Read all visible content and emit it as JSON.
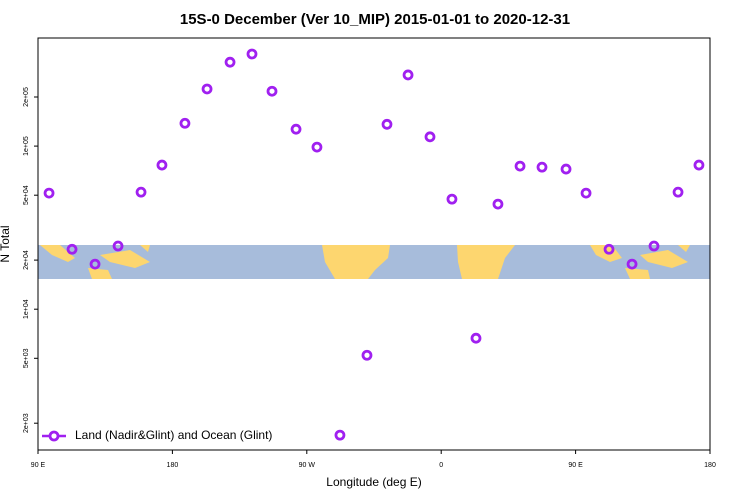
{
  "chart_data": {
    "type": "scatter",
    "title": "15S-0 December (Ver 10_MIP)   2015-01-01 to 2020-12-31",
    "x_label": "Longitude (deg E)",
    "y_label": "N Total",
    "xlim": [
      90,
      540
    ],
    "xticks": [
      {
        "value": 90,
        "label": "90 E"
      },
      {
        "value": 180,
        "label": "180"
      },
      {
        "value": 270,
        "label": "90 W"
      },
      {
        "value": 360,
        "label": "0"
      },
      {
        "value": 450,
        "label": "90 E"
      },
      {
        "value": 540,
        "label": "180"
      }
    ],
    "ylim": [
      1370,
      460000
    ],
    "yscale": "log",
    "yticks": [
      {
        "value": 2000,
        "label": "2e+03"
      },
      {
        "value": 5000,
        "label": "5e+03"
      },
      {
        "value": 10000,
        "label": "1e+04"
      },
      {
        "value": 20000,
        "label": "2e+04"
      },
      {
        "value": 50000,
        "label": "5e+04"
      },
      {
        "value": 100000,
        "label": "1e+05"
      },
      {
        "value": 200000,
        "label": "2e+05"
      }
    ],
    "legend": "bottom-left",
    "series": [
      {
        "name": "Land (Nadir&Glint) and Ocean (Glint)",
        "color": "#a020f0",
        "x": [
          97.4,
          112.8,
          128.2,
          143.6,
          159,
          173,
          188.4,
          203.2,
          218.6,
          233.3,
          246.7,
          262.8,
          276.8,
          292.2,
          310.3,
          323.7,
          337.8,
          352.5,
          367.2,
          383.3,
          398,
          412.8,
          427.5,
          443.6,
          457,
          472.4,
          487.8,
          502.5,
          518.6,
          532.6
        ],
        "values": [
          51500,
          23300,
          18900,
          24400,
          52200,
          76500,
          138000,
          224000,
          327000,
          367000,
          217000,
          127000,
          98600,
          1690,
          5220,
          136000,
          273000,
          114000,
          47300,
          6640,
          44100,
          75400,
          74300,
          72300,
          51500,
          23300,
          18900,
          24400,
          52200,
          76500
        ]
      }
    ]
  }
}
